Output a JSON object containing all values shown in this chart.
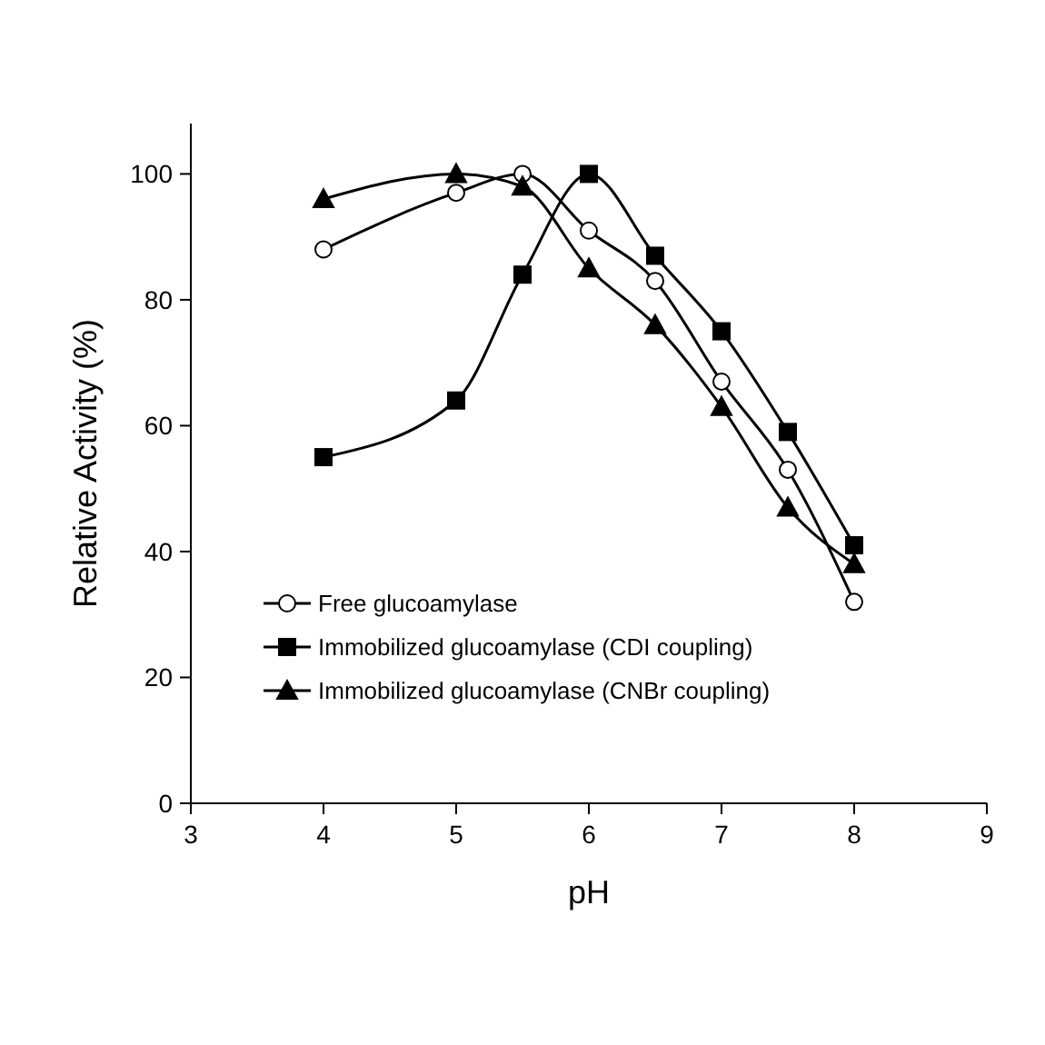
{
  "chart_data": {
    "type": "line",
    "xlabel": "pH",
    "ylabel": "Relative Activity (%)",
    "xlim": [
      3,
      9
    ],
    "xticks": [
      3,
      4,
      5,
      6,
      7,
      8,
      9
    ],
    "ylim": [
      0,
      108
    ],
    "yticks": [
      0,
      20,
      40,
      60,
      80,
      100
    ],
    "grid": false,
    "legend": "bottom left",
    "series": [
      {
        "name": "Free glucoamylase",
        "color": "#000000",
        "marker": "circle",
        "x": [
          4,
          5,
          5.5,
          6,
          6.5,
          7,
          7.5,
          8
        ],
        "values": [
          88,
          97,
          100,
          91,
          83,
          67,
          53,
          32
        ]
      },
      {
        "name": "Immobilized glucoamylase (CDI coupling)",
        "color": "#000000",
        "marker": "square",
        "x": [
          4,
          5,
          5.5,
          6,
          6.5,
          7,
          7.5,
          8
        ],
        "values": [
          55,
          64,
          84,
          100,
          87,
          75,
          59,
          41
        ]
      },
      {
        "name": "Immobilized glucoamylase (CNBr coupling)",
        "color": "#000000",
        "marker": "triangle",
        "x": [
          4,
          5,
          5.5,
          6,
          6.5,
          7,
          7.5,
          8
        ],
        "values": [
          96,
          100,
          98,
          85,
          76,
          63,
          47,
          38
        ]
      }
    ]
  }
}
